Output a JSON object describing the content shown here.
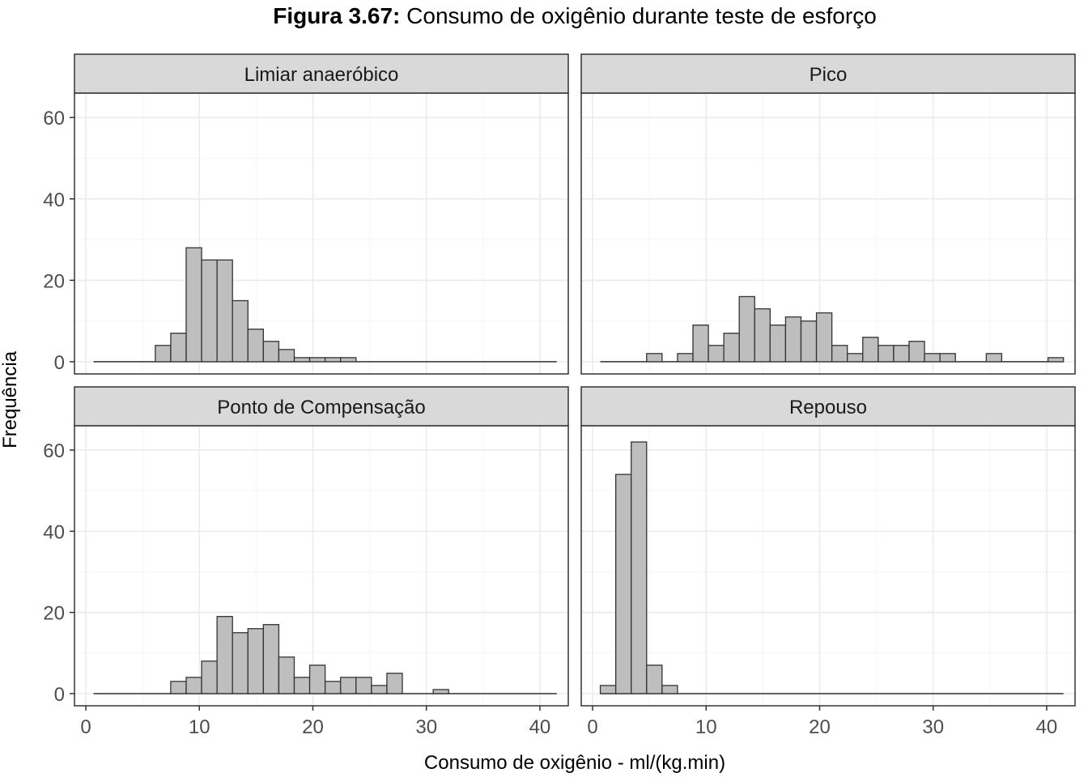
{
  "figure": {
    "title_prefix": "Figura 3.67:",
    "title_text": " Consumo de oxigênio durante teste de esforço",
    "xlabel": "Consumo de oxigênio - ml/(kg.min)",
    "ylabel": "Frequência"
  },
  "colors": {
    "bar_fill": "#bebebe",
    "bar_stroke": "#333333",
    "strip_fill": "#d9d9d9",
    "grid_major": "#ebebeb",
    "grid_minor": "#f5f5f5",
    "panel_border": "#333333"
  },
  "chart_data": {
    "type": "bar",
    "subtype": "faceted-histogram",
    "bin_width": 1.36,
    "bin_start": 0.68,
    "num_bins": 30,
    "x_ticks": [
      0,
      10,
      20,
      30,
      40
    ],
    "y_ticks": [
      0,
      20,
      40,
      60
    ],
    "xlim": [
      -1,
      42.5
    ],
    "ylim": [
      -3,
      66
    ],
    "grid": true,
    "panels": [
      {
        "label": "Limiar anaeróbico",
        "counts": [
          0,
          0,
          0,
          0,
          4,
          7,
          28,
          25,
          25,
          15,
          8,
          5,
          3,
          1,
          1,
          1,
          1,
          0,
          0,
          0,
          0,
          0,
          0,
          0,
          0,
          0,
          0,
          0,
          0,
          0
        ]
      },
      {
        "label": "Pico",
        "counts": [
          0,
          0,
          0,
          2,
          0,
          2,
          9,
          4,
          7,
          16,
          13,
          9,
          11,
          10,
          12,
          4,
          2,
          6,
          4,
          4,
          5,
          2,
          2,
          0,
          0,
          2,
          0,
          0,
          0,
          1
        ]
      },
      {
        "label": "Ponto de Compensação",
        "counts": [
          0,
          0,
          0,
          0,
          0,
          3,
          4,
          8,
          19,
          15,
          16,
          17,
          9,
          4,
          7,
          3,
          4,
          4,
          2,
          5,
          0,
          0,
          1,
          0,
          0,
          0,
          0,
          0,
          0,
          0
        ]
      },
      {
        "label": "Repouso",
        "counts": [
          2,
          54,
          62,
          7,
          2,
          0,
          0,
          0,
          0,
          0,
          0,
          0,
          0,
          0,
          0,
          0,
          0,
          0,
          0,
          0,
          0,
          0,
          0,
          0,
          0,
          0,
          0,
          0,
          0,
          0
        ]
      }
    ]
  }
}
